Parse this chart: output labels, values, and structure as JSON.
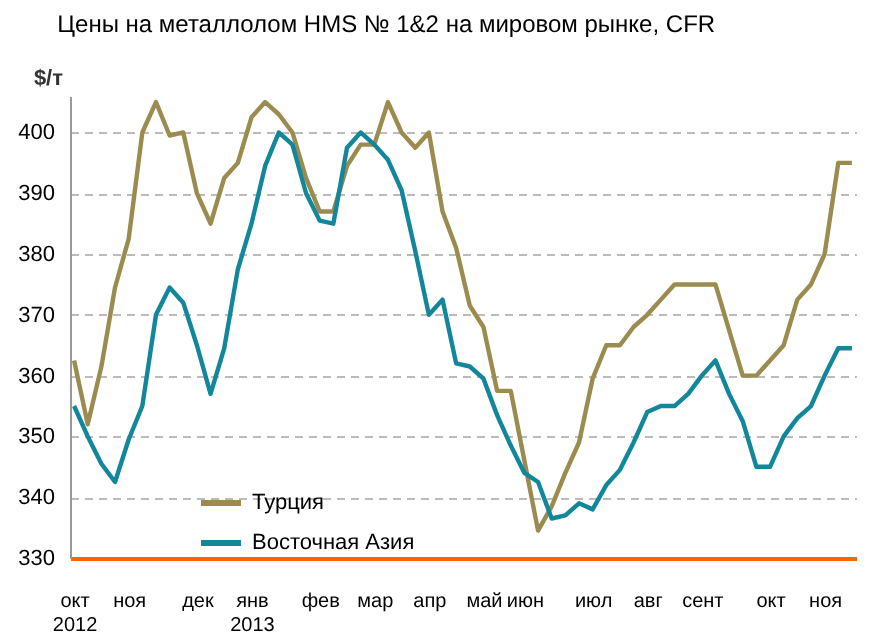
{
  "chart_data": {
    "type": "line",
    "title": "Цены на металлолом HMS № 1&2 на мировом рынке, CFR",
    "ylabel": "$/т",
    "categories": [
      "окт\n2012",
      null,
      null,
      null,
      "ноя",
      null,
      null,
      null,
      null,
      "дек",
      null,
      null,
      null,
      "янв\n2013",
      null,
      null,
      null,
      null,
      "фев",
      null,
      null,
      null,
      "мар",
      null,
      null,
      null,
      "апр",
      null,
      null,
      null,
      "май",
      null,
      null,
      "июн",
      null,
      null,
      null,
      null,
      "июл",
      null,
      null,
      null,
      "авг",
      null,
      null,
      null,
      "сент",
      null,
      null,
      null,
      null,
      "окт",
      null,
      null,
      null,
      "ноя",
      null,
      null
    ],
    "series": [
      {
        "name": "Турция",
        "color": "#9b8b4f",
        "values": [
          362.5,
          352,
          361.5,
          374.5,
          382.5,
          400,
          405,
          399.5,
          400,
          390,
          385,
          392.5,
          395,
          402.5,
          405,
          403,
          400,
          392.5,
          387,
          387,
          394.5,
          398,
          398,
          405,
          400,
          397.5,
          400,
          387,
          381,
          371.5,
          368,
          357.5,
          357.5,
          346,
          334.5,
          338.5,
          344,
          349,
          359.5,
          365,
          365,
          368,
          370,
          372.5,
          375,
          375,
          375,
          375,
          367.5,
          360,
          360,
          362.5,
          365,
          372.5,
          375,
          380,
          395,
          395
        ]
      },
      {
        "name": "Восточная Азия",
        "color": "#12869b",
        "values": [
          355,
          350,
          345.5,
          342.5,
          349.5,
          355,
          370,
          374.5,
          372,
          365,
          357,
          364.5,
          377.5,
          385,
          394.5,
          400,
          398,
          390,
          385.5,
          385,
          397.5,
          400,
          398,
          395.5,
          390.5,
          380.5,
          370,
          372.5,
          362,
          361.5,
          359.5,
          353.5,
          348.5,
          344,
          342.5,
          336.5,
          337,
          339,
          338,
          342,
          344.5,
          349,
          354,
          355,
          355,
          357,
          360,
          362.5,
          357,
          352.5,
          345,
          345,
          350,
          353,
          355,
          360,
          364.5,
          364.5
        ]
      }
    ],
    "ylim": [
      330,
      406
    ],
    "yticks": [
      330,
      340,
      350,
      360,
      370,
      380,
      390,
      400
    ],
    "grid": "y",
    "legend": "bottom left"
  }
}
